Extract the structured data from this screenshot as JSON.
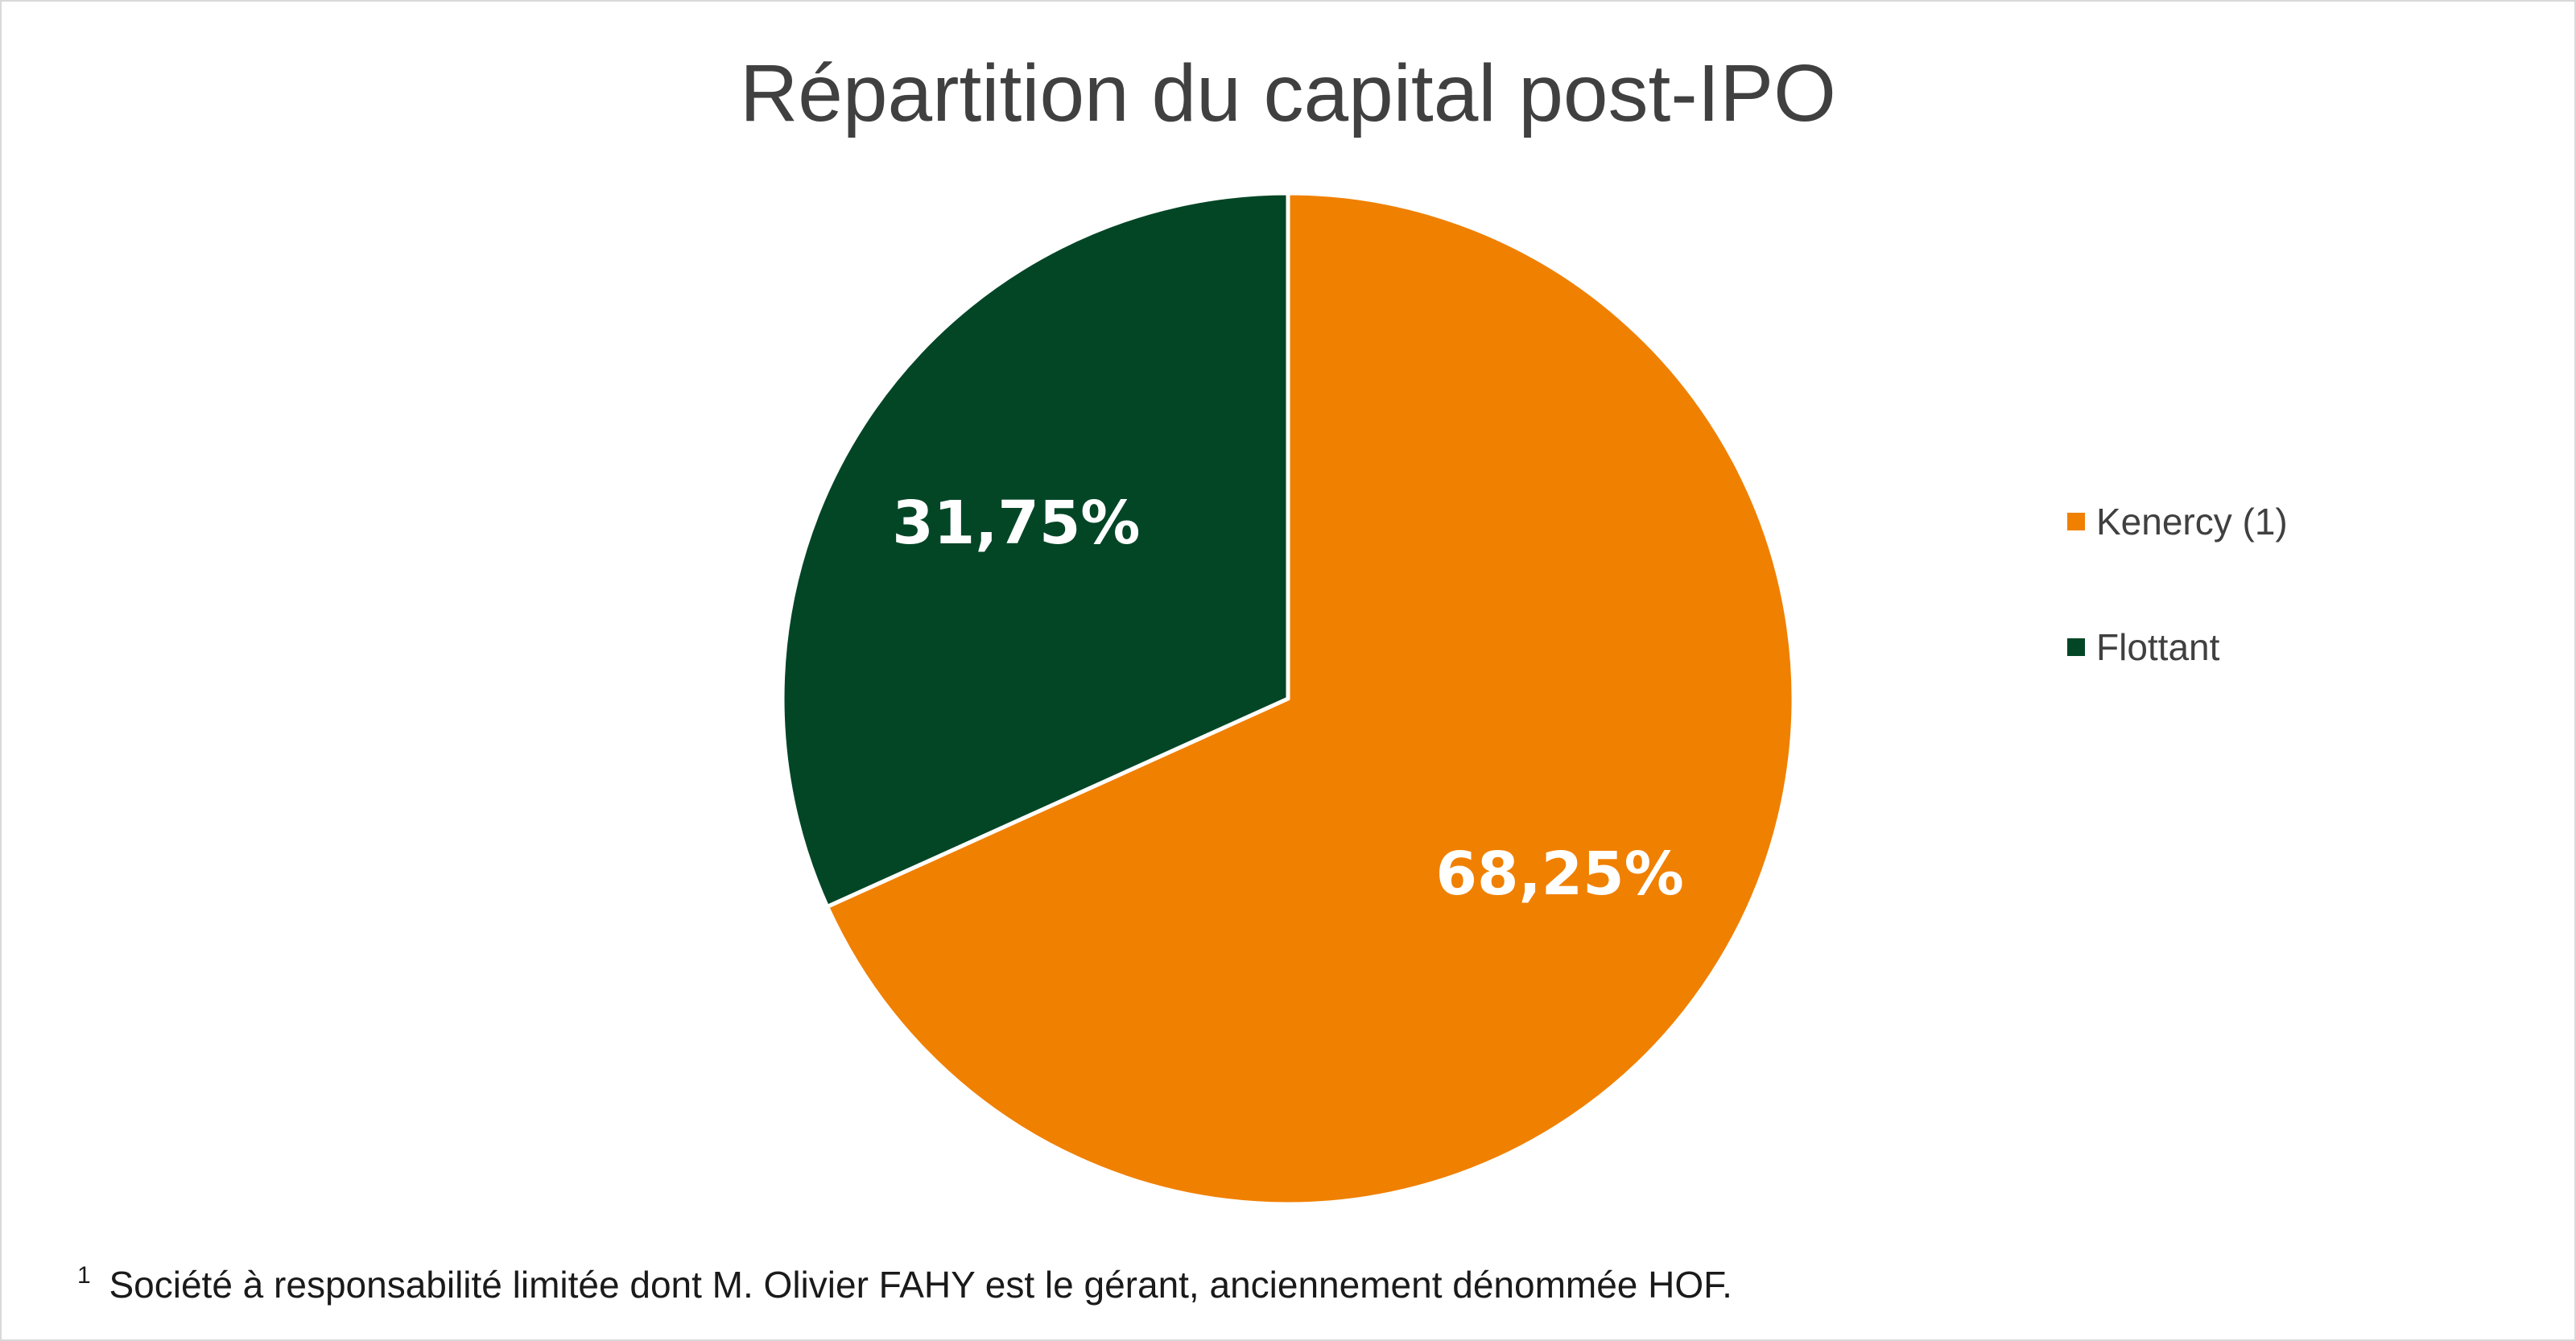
{
  "chart_data": {
    "type": "pie",
    "title": "Répartition du capital post-IPO",
    "slices": [
      {
        "label": "Kenercy (1)",
        "value": 68.25,
        "display": "68,25%",
        "color": "#F08000"
      },
      {
        "label": "Flottant",
        "value": 31.75,
        "display": "31,75%",
        "color": "#034626"
      }
    ],
    "legend_position": "right"
  },
  "footnote": {
    "marker": "1",
    "text": "Société à responsabilité limitée dont M. Olivier FAHY est le gérant, anciennement dénommée HOF."
  }
}
